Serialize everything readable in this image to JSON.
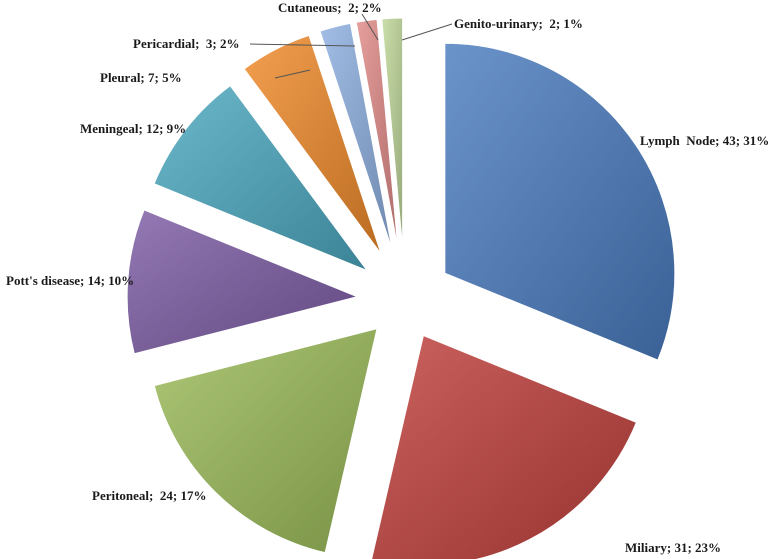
{
  "chart_data": {
    "type": "pie",
    "exploded": true,
    "data_label_format": "{name}; {count}; {percent}",
    "slices": [
      {
        "name": "Lymph  Node",
        "count": 43,
        "percent": "31%",
        "color": "#4a7cc0",
        "label": "Lymph  Node; 43; 31%"
      },
      {
        "name": "Miliary",
        "count": 31,
        "percent": "23%",
        "color": "#c0403c",
        "label": "Miliary; 31; 23%"
      },
      {
        "name": "Peritoneal",
        "count": 24,
        "percent": "17%",
        "color": "#9bbb59",
        "label": "Peritoneal;  24; 17%"
      },
      {
        "name": "Pott's disease",
        "count": 14,
        "percent": "10%",
        "color": "#7c5ca4",
        "label": "Pott's disease; 14; 10%"
      },
      {
        "name": "Meningeal",
        "count": 12,
        "percent": "9%",
        "color": "#4ca8c0",
        "label": "Meningeal; 12; 9%"
      },
      {
        "name": "Pleural",
        "count": 7,
        "percent": "5%",
        "color": "#f08a2a",
        "label": "Pleural; 7; 5%"
      },
      {
        "name": "Pericardial",
        "count": 3,
        "percent": "2%",
        "color": "#8eb0e0",
        "label": "Pericardial;  3; 2%"
      },
      {
        "name": "Cutaneous",
        "count": 2,
        "percent": "2%",
        "color": "#e08a88",
        "label": "Cutaneous;  2; 2%"
      },
      {
        "name": "Genito-urinary",
        "count": 2,
        "percent": "1%",
        "color": "#c0d89a",
        "label": "Genito-urinary;  2; 1%"
      }
    ]
  }
}
